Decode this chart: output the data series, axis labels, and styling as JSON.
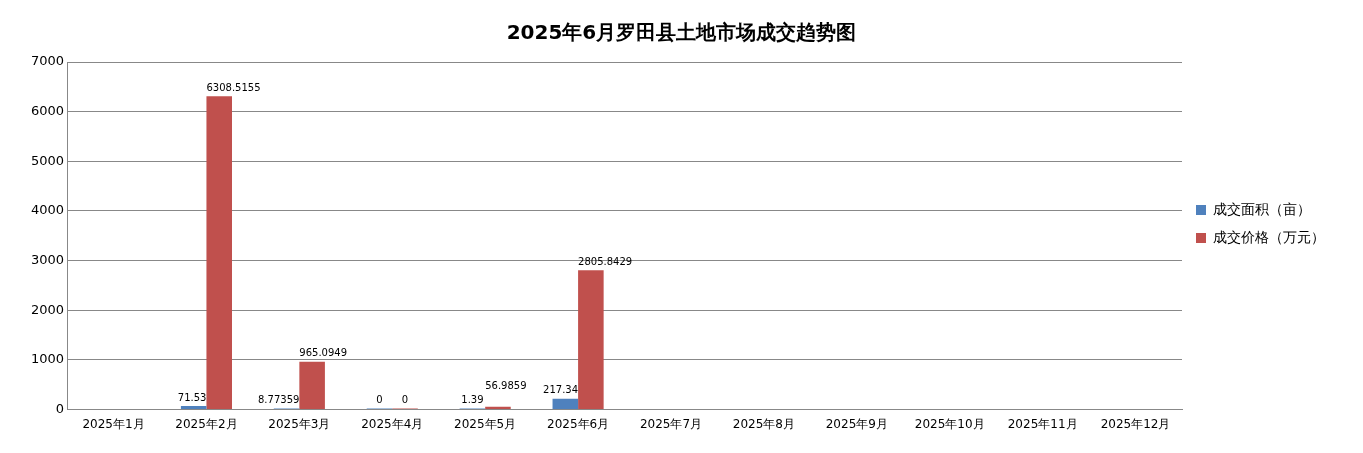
{
  "chart_data": {
    "type": "bar",
    "title": "2025年6月罗田县土地市场成交趋势图",
    "categories": [
      "2025年1月",
      "2025年2月",
      "2025年3月",
      "2025年4月",
      "2025年5月",
      "2025年6月",
      "2025年7月",
      "2025年8月",
      "2025年9月",
      "2025年10月",
      "2025年11月",
      "2025年12月"
    ],
    "series": [
      {
        "name": "成交面积（亩）",
        "color": "#4f81bd",
        "values": [
          null,
          71.53,
          8.77359,
          0,
          1.39,
          217.34,
          null,
          null,
          null,
          null,
          null,
          null
        ]
      },
      {
        "name": "成交价格（万元）",
        "color": "#c0504d",
        "values": [
          null,
          6308.5155,
          965.0949,
          0,
          56.9859,
          2805.8429,
          null,
          null,
          null,
          null,
          null,
          null
        ]
      }
    ],
    "ylim": [
      0,
      7000
    ],
    "yticks": [
      0,
      1000,
      2000,
      3000,
      4000,
      5000,
      6000,
      7000
    ],
    "grid": "y",
    "legend": "right",
    "data_labels": true
  }
}
